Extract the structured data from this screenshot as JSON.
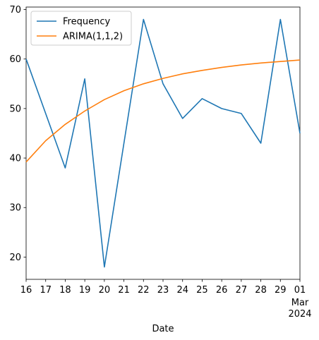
{
  "chart_data": {
    "type": "line",
    "title": "",
    "xlabel": "Date",
    "ylabel": "",
    "x": [
      "2024-02-16",
      "2024-02-17",
      "2024-02-18",
      "2024-02-19",
      "2024-02-20",
      "2024-02-21",
      "2024-02-22",
      "2024-02-23",
      "2024-02-24",
      "2024-02-25",
      "2024-02-26",
      "2024-02-27",
      "2024-02-28",
      "2024-02-29",
      "2024-03-01"
    ],
    "x_tick_labels": [
      "16",
      "17",
      "18",
      "19",
      "20",
      "21",
      "22",
      "23",
      "24",
      "25",
      "26",
      "27",
      "28",
      "29",
      "01"
    ],
    "x_tick_sublabel": {
      "line1": "Mar",
      "line2": "2024"
    },
    "yticks": [
      20,
      30,
      40,
      50,
      60,
      70
    ],
    "ylim": [
      15.5,
      70.5
    ],
    "grid": false,
    "legend_position": "top-left",
    "series": [
      {
        "name": "Frequency",
        "color": "#1f77b4",
        "x": [
          "2024-02-16",
          "2024-02-18",
          "2024-02-19",
          "2024-02-20",
          "2024-02-22",
          "2024-02-23",
          "2024-02-24",
          "2024-02-25",
          "2024-02-26",
          "2024-02-27",
          "2024-02-28",
          "2024-02-29",
          "2024-03-01"
        ],
        "values": [
          60,
          38,
          56,
          18,
          68,
          55,
          48,
          52,
          50,
          49,
          43,
          68,
          45
        ]
      },
      {
        "name": "ARIMA(1,1,2)",
        "color": "#ff7f0e",
        "x": [
          "2024-02-16",
          "2024-02-17",
          "2024-02-18",
          "2024-02-19",
          "2024-02-20",
          "2024-02-21",
          "2024-02-22",
          "2024-02-23",
          "2024-02-24",
          "2024-02-25",
          "2024-02-26",
          "2024-02-27",
          "2024-02-28",
          "2024-02-29",
          "2024-03-01"
        ],
        "values": [
          39.2,
          43.5,
          46.8,
          49.5,
          51.8,
          53.6,
          55.0,
          56.1,
          57.0,
          57.7,
          58.3,
          58.8,
          59.2,
          59.5,
          59.8
        ]
      }
    ]
  }
}
